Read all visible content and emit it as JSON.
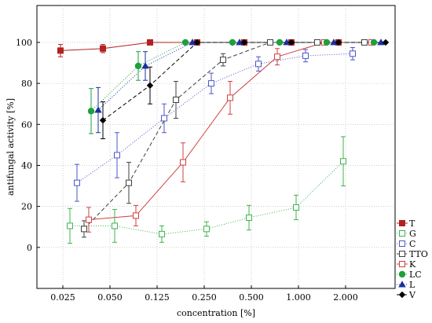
{
  "chart_data": {
    "type": "line",
    "xlabel": "concentration [%]",
    "ylabel": "antifungal activity [%]",
    "ylim": [
      -20,
      118
    ],
    "y_ticks": [
      0,
      20,
      40,
      60,
      80,
      100
    ],
    "x_categories": [
      "0.025",
      "0.050",
      "0.125",
      "0.250",
      "0.500",
      "1.000",
      "2.000"
    ],
    "grid": "dotted",
    "legend_position": "right",
    "series": [
      {
        "name": "T",
        "color": "#b22222",
        "marker": "square-filled",
        "line": "solid",
        "points": [
          [
            -0.05,
            96,
            3
          ],
          [
            0.85,
            97,
            2
          ],
          [
            1.85,
            100,
            0
          ],
          [
            2.85,
            100,
            0
          ],
          [
            3.85,
            100,
            0
          ],
          [
            4.85,
            100,
            0
          ],
          [
            5.85,
            100,
            0
          ]
        ]
      },
      {
        "name": "G",
        "color": "#3cb44b",
        "marker": "square-open",
        "line": "dotted",
        "points": [
          [
            0.15,
            10.5,
            8.5
          ],
          [
            1.1,
            10.5,
            8
          ],
          [
            2.1,
            6.5,
            4
          ],
          [
            3.05,
            9,
            3.5
          ],
          [
            3.95,
            14.5,
            6
          ],
          [
            4.95,
            19.5,
            6
          ],
          [
            5.95,
            42,
            12
          ]
        ]
      },
      {
        "name": "C",
        "color": "#4d56c9",
        "marker": "square-open",
        "line": "dotted",
        "points": [
          [
            0.3,
            31.5,
            9
          ],
          [
            1.15,
            45,
            11
          ],
          [
            2.15,
            63,
            7
          ],
          [
            3.15,
            80,
            5
          ],
          [
            4.15,
            89.5,
            3.5
          ],
          [
            5.15,
            93.5,
            3
          ],
          [
            6.15,
            94.5,
            3
          ]
        ]
      },
      {
        "name": "TTO",
        "color": "#404040",
        "marker": "square-open",
        "line": "dashed",
        "points": [
          [
            0.45,
            9,
            4
          ],
          [
            1.4,
            31.5,
            10
          ],
          [
            2.4,
            72,
            9
          ],
          [
            3.4,
            91.5,
            3
          ],
          [
            4.4,
            100,
            0
          ],
          [
            5.4,
            100,
            0
          ],
          [
            6.4,
            100,
            0
          ]
        ]
      },
      {
        "name": "K",
        "color": "#d04040",
        "marker": "square-open",
        "line": "solid",
        "points": [
          [
            0.55,
            13.5,
            6
          ],
          [
            1.55,
            15.5,
            5
          ],
          [
            2.55,
            41.5,
            9.5
          ],
          [
            3.55,
            73,
            8
          ],
          [
            4.55,
            93,
            4
          ],
          [
            5.55,
            100,
            0
          ],
          [
            6.55,
            100,
            0
          ]
        ]
      },
      {
        "name": "LC",
        "color": "#1ea03c",
        "marker": "circle-filled",
        "line": "dotted",
        "points": [
          [
            0.6,
            66.5,
            11
          ],
          [
            1.6,
            88.5,
            7
          ],
          [
            2.6,
            100,
            0
          ],
          [
            3.6,
            100,
            0
          ],
          [
            4.6,
            100,
            0
          ],
          [
            5.6,
            100,
            0
          ],
          [
            6.6,
            100,
            0
          ]
        ]
      },
      {
        "name": "L",
        "color": "#1c2fa0",
        "marker": "triangle-filled",
        "line": "dotted",
        "points": [
          [
            0.75,
            67,
            11
          ],
          [
            1.75,
            88.5,
            7
          ],
          [
            2.75,
            100,
            0
          ],
          [
            3.75,
            100,
            0
          ],
          [
            4.75,
            100,
            0
          ],
          [
            5.75,
            100,
            0
          ],
          [
            6.75,
            100,
            0
          ]
        ]
      },
      {
        "name": "V",
        "color": "#000000",
        "marker": "diamond-filled",
        "line": "dashed",
        "points": [
          [
            0.85,
            62,
            9
          ],
          [
            1.85,
            79,
            9
          ],
          [
            2.85,
            100,
            0
          ],
          [
            3.85,
            100,
            0
          ],
          [
            4.85,
            100,
            0
          ],
          [
            5.85,
            100,
            0
          ],
          [
            6.85,
            100,
            0
          ]
        ]
      }
    ]
  }
}
